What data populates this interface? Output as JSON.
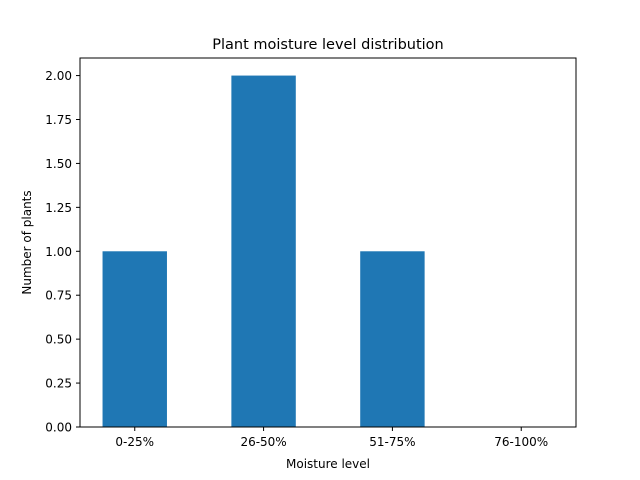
{
  "chart_data": {
    "type": "bar",
    "title": "Plant moisture level distribution",
    "xlabel": "Moisture level",
    "ylabel": "Number of plants",
    "categories": [
      "0-25%",
      "26-50%",
      "51-75%",
      "76-100%"
    ],
    "values": [
      1,
      2,
      1,
      0
    ],
    "ylim": [
      0,
      2.1
    ],
    "yticks": [
      "0.00",
      "0.25",
      "0.50",
      "0.75",
      "1.00",
      "1.25",
      "1.50",
      "1.75",
      "2.00"
    ],
    "bar_color": "#1f77b4",
    "grid": false,
    "legend": "none"
  }
}
